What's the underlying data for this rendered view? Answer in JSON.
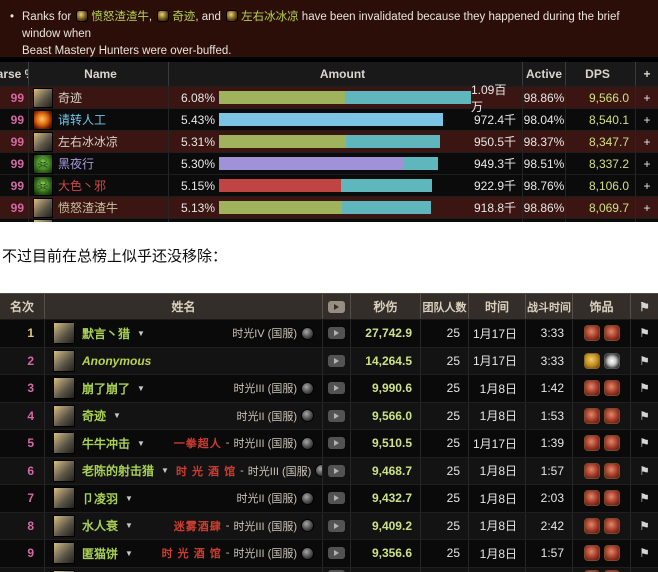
{
  "banner": {
    "bullet": "•",
    "prefix": "Ranks for",
    "sep1": ", ",
    "sep2": ", and ",
    "names": [
      "愤怒渣渣牛",
      "奇迹",
      "左右冰冰凉"
    ],
    "tail1": "have been invalidated because they happened during the brief window when",
    "tail2": "Beast Mastery Hunters were over-buffed.",
    "name_color": "#b3d352",
    "bg_color": "#2c0e09"
  },
  "icons": {
    "flag": "⚑",
    "caret": "▼",
    "youtube": "youtube-play-icon"
  },
  "table1": {
    "headers": {
      "parse": "Parse %",
      "name": "Name",
      "amount": "Amount",
      "active": "Active",
      "dps": "DPS",
      "plus": "+"
    },
    "bar_colors": {
      "green": "#9fb35c",
      "teal": "#5fb6bd",
      "lightblue": "#7cc4e4",
      "purple": "#a092d8",
      "red": "#c14444"
    },
    "rows": [
      {
        "parse": "99",
        "name": "奇迹",
        "name_color": "#d8d4c8",
        "icon": "hunter",
        "pct": "6.08%",
        "bar": {
          "s1w": "126px",
          "s1c": "#9fb35c",
          "s2w": "126px",
          "s2c": "#5fb6bd"
        },
        "amount": "1.09百万",
        "active": "98.86%",
        "dps": "9,566.0",
        "plus": "+",
        "invalidated": true
      },
      {
        "parse": "99",
        "name": "请转人工",
        "name_color": "#72c6ec",
        "icon": "fire",
        "pct": "5.43%",
        "bar": {
          "s1w": "224px",
          "s1c": "#7cc4e4",
          "s2w": "0px",
          "s2c": "#5fb6bd"
        },
        "amount": "972.4千",
        "active": "98.04%",
        "dps": "8,540.1",
        "plus": "+",
        "invalidated": false
      },
      {
        "parse": "99",
        "name": "左右冰冰凉",
        "name_color": "#d8d4c8",
        "icon": "hunter",
        "pct": "5.31%",
        "bar": {
          "s1w": "127px",
          "s1c": "#9fb35c",
          "s2w": "94px",
          "s2c": "#5fb6bd"
        },
        "amount": "950.5千",
        "active": "98.37%",
        "dps": "8,347.7",
        "plus": "+",
        "invalidated": true
      },
      {
        "parse": "99",
        "name": "黑夜行",
        "name_color": "#a79ae0",
        "icon": "wskull",
        "pct": "5.30%",
        "bar": {
          "s1w": "184px",
          "s1c": "#a092d8",
          "s2w": "35px",
          "s2c": "#5fb6bd"
        },
        "amount": "949.3千",
        "active": "98.51%",
        "dps": "8,337.2",
        "plus": "+",
        "invalidated": false
      },
      {
        "parse": "99",
        "name": "大色丶邪",
        "name_color": "#d04848",
        "icon": "uskull",
        "pct": "5.15%",
        "bar": {
          "s1w": "122px",
          "s1c": "#c14444",
          "s2w": "91px",
          "s2c": "#5fb6bd"
        },
        "amount": "922.9千",
        "active": "98.76%",
        "dps": "8,106.0",
        "plus": "+",
        "invalidated": false
      },
      {
        "parse": "99",
        "name": "愤怒渣渣牛",
        "name_color": "#cdc3a4",
        "icon": "hunter",
        "pct": "5.13%",
        "bar": {
          "s1w": "123px",
          "s1c": "#9fb35c",
          "s2w": "89px",
          "s2c": "#5fb6bd"
        },
        "amount": "918.8千",
        "active": "98.86%",
        "dps": "8,069.7",
        "plus": "+",
        "invalidated": true
      }
    ]
  },
  "note": "不过目前在总榜上似乎还没移除：",
  "table2": {
    "headers": {
      "rank": "名次",
      "name": "姓名",
      "dps": "秒伤",
      "size": "团队人数",
      "date": "时间",
      "ftime": "战斗时间",
      "trinkets": "饰品"
    },
    "rows": [
      {
        "rank": "1",
        "rank_color": "#e3c878",
        "name": "默言丶猎",
        "team": "",
        "sep": "",
        "guild": "时光IV (国服)",
        "dps": "27,742.9",
        "size": "25",
        "date": "1月17日",
        "ftime": "3:33",
        "trinkets": [
          "red",
          "red"
        ]
      },
      {
        "rank": "2",
        "rank_color": "#d668a4",
        "name": "Anonymous",
        "team": "",
        "sep": "",
        "guild": "",
        "dps": "14,264.5",
        "size": "25",
        "date": "1月17日",
        "ftime": "3:33",
        "trinkets": [
          "coin",
          "burst"
        ]
      },
      {
        "rank": "3",
        "rank_color": "#d668a4",
        "name": "崩了崩了",
        "team": "",
        "sep": "",
        "guild": "时光III (国服)",
        "dps": "9,990.6",
        "size": "25",
        "date": "1月8日",
        "ftime": "1:42",
        "trinkets": [
          "red",
          "red"
        ]
      },
      {
        "rank": "4",
        "rank_color": "#d668a4",
        "name": "奇迹",
        "team": "",
        "sep": "",
        "guild": "时光II (国服)",
        "dps": "9,566.0",
        "size": "25",
        "date": "1月8日",
        "ftime": "1:53",
        "trinkets": [
          "red",
          "red"
        ]
      },
      {
        "rank": "5",
        "rank_color": "#d668a4",
        "name": "牛牛冲击",
        "team": "一拳超人",
        "sep": " - ",
        "guild": "时光III (国服)",
        "dps": "9,510.5",
        "size": "25",
        "date": "1月17日",
        "ftime": "1:39",
        "trinkets": [
          "red",
          "red"
        ]
      },
      {
        "rank": "6",
        "rank_color": "#d668a4",
        "name": "老陈的射击猎",
        "team": "时 光 酒 馆",
        "sep": " - ",
        "guild": "时光III (国服)",
        "dps": "9,468.7",
        "size": "25",
        "date": "1月8日",
        "ftime": "1:57",
        "trinkets": [
          "red",
          "red"
        ]
      },
      {
        "rank": "7",
        "rank_color": "#d668a4",
        "name": "卩凌羽",
        "team": "",
        "sep": "",
        "guild": "时光II (国服)",
        "dps": "9,432.7",
        "size": "25",
        "date": "1月8日",
        "ftime": "2:03",
        "trinkets": [
          "red",
          "red"
        ]
      },
      {
        "rank": "8",
        "rank_color": "#d668a4",
        "name": "水人衰",
        "team": "迷雾酒肆",
        "sep": " - ",
        "guild": "时光III (国服)",
        "dps": "9,409.2",
        "size": "25",
        "date": "1月8日",
        "ftime": "2:42",
        "trinkets": [
          "red",
          "red"
        ]
      },
      {
        "rank": "9",
        "rank_color": "#d668a4",
        "name": "匿猫饼",
        "team": "时 光 酒 馆",
        "sep": " - ",
        "guild": "时光III (国服)",
        "dps": "9,356.6",
        "size": "25",
        "date": "1月8日",
        "ftime": "1:57",
        "trinkets": [
          "red",
          "red"
        ]
      }
    ]
  }
}
